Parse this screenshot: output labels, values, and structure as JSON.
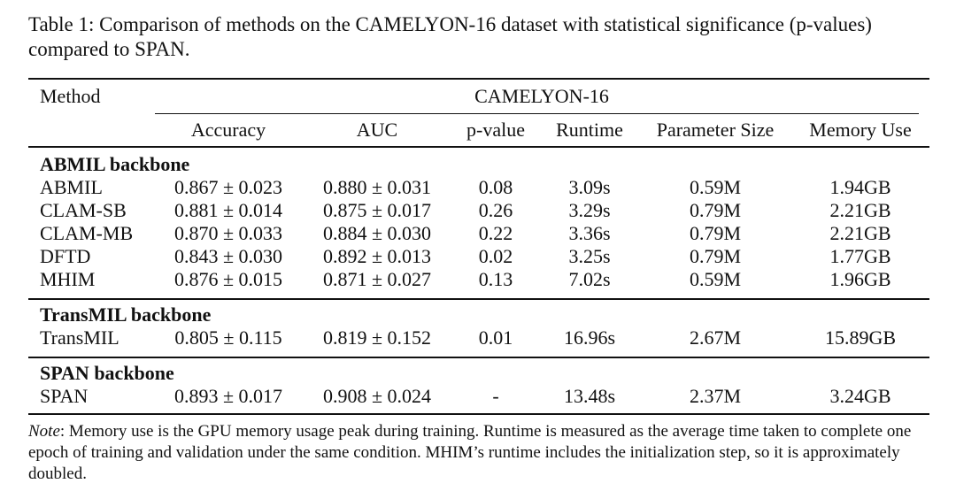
{
  "caption": "Table 1: Comparison of methods on the CAMELYON-16 dataset with statistical significance (p-values) compared to SPAN.",
  "header": {
    "method_label": "Method",
    "group_label": "CAMELYON-16",
    "columns": [
      "Accuracy",
      "AUC",
      "p-value",
      "Runtime",
      "Parameter Size",
      "Memory Use"
    ]
  },
  "sections": [
    {
      "title": "ABMIL backbone",
      "rows": [
        {
          "method": "ABMIL",
          "accuracy": "0.867 ± 0.023",
          "auc": "0.880 ± 0.031",
          "p_value": "0.08",
          "runtime": "3.09s",
          "params": "0.59M",
          "memory": "1.94GB"
        },
        {
          "method": "CLAM-SB",
          "accuracy": "0.881 ± 0.014",
          "auc": "0.875 ± 0.017",
          "p_value": "0.26",
          "runtime": "3.29s",
          "params": "0.79M",
          "memory": "2.21GB"
        },
        {
          "method": "CLAM-MB",
          "accuracy": "0.870 ± 0.033",
          "auc": "0.884 ± 0.030",
          "p_value": "0.22",
          "runtime": "3.36s",
          "params": "0.79M",
          "memory": "2.21GB"
        },
        {
          "method": "DFTD",
          "accuracy": "0.843 ± 0.030",
          "auc": "0.892 ± 0.013",
          "p_value": "0.02",
          "runtime": "3.25s",
          "params": "0.79M",
          "memory": "1.77GB"
        },
        {
          "method": "MHIM",
          "accuracy": "0.876 ± 0.015",
          "auc": "0.871 ± 0.027",
          "p_value": "0.13",
          "runtime": "7.02s",
          "params": "0.59M",
          "memory": "1.96GB"
        }
      ]
    },
    {
      "title": "TransMIL backbone",
      "rows": [
        {
          "method": "TransMIL",
          "accuracy": "0.805 ± 0.115",
          "auc": "0.819 ± 0.152",
          "p_value": "0.01",
          "runtime": "16.96s",
          "params": "2.67M",
          "memory": "15.89GB"
        }
      ]
    },
    {
      "title": "SPAN backbone",
      "rows": [
        {
          "method": "SPAN",
          "accuracy": "0.893 ± 0.017",
          "auc": "0.908 ± 0.024",
          "p_value": "-",
          "runtime": "13.48s",
          "params": "2.37M",
          "memory": "3.24GB"
        }
      ]
    }
  ],
  "note": {
    "label": "Note",
    "text": ": Memory use is the GPU memory usage peak during training. Runtime is measured as the average time taken to complete one epoch of training and validation under the same condition. MHIM’s runtime includes the initialization step, so it is approximately doubled."
  }
}
